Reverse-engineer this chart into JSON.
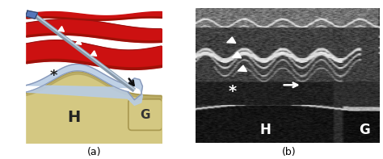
{
  "fig_width": 4.74,
  "fig_height": 1.97,
  "dpi": 100,
  "bg_color": "#ffffff",
  "label_a": "(a)",
  "label_b": "(b)",
  "panel_a": {
    "muscle_color": "#cc1111",
    "muscle_dark": "#991111",
    "muscle_shadow": "#881100",
    "bursa_color": "#b8cce4",
    "bursa_dark": "#8899bb",
    "H_color": "#d4c882",
    "H_outline": "#a89850",
    "G_color": "#d4c882",
    "G_outline": "#a89850",
    "needle_shaft": "#8899aa",
    "needle_light": "#ccddee",
    "needle_dark": "#445566",
    "handle_color": "#5577bb",
    "arrow_color": "#111111",
    "label_H": "H",
    "label_G": "G",
    "asterisk": "*"
  },
  "panel_b": {
    "label_H": "H",
    "label_G": "G",
    "asterisk": "*"
  }
}
